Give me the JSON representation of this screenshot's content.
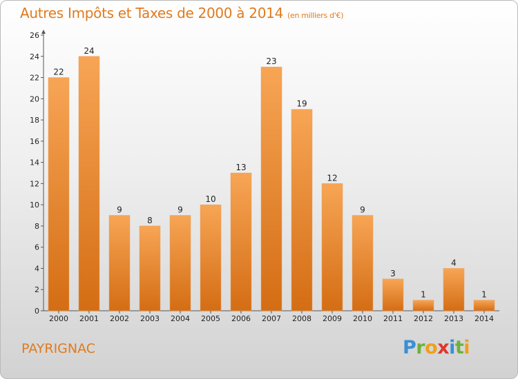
{
  "title": "Autres Impôts et Taxes de 2000 à 2014",
  "title_unit": "(en milliers d'€)",
  "commune": "PAYRIGNAC",
  "logo": {
    "p": "P",
    "r": "r",
    "o": "o",
    "x": "x",
    "i": "i",
    "t": "t",
    "i2": "i"
  },
  "colors": {
    "bar_light": "#f7a555",
    "bar_dark": "#d46d14",
    "title": "#e07a1c"
  },
  "chart_data": {
    "type": "bar",
    "title": "Autres Impôts et Taxes de 2000 à 2014",
    "categories": [
      "2000",
      "2001",
      "2002",
      "2003",
      "2004",
      "2005",
      "2006",
      "2007",
      "2008",
      "2009",
      "2010",
      "2011",
      "2012",
      "2013",
      "2014"
    ],
    "values": [
      22,
      24,
      9,
      8,
      9,
      10,
      13,
      23,
      19,
      12,
      9,
      3,
      1,
      4,
      1
    ],
    "ylim": [
      0,
      26
    ],
    "yticks": [
      0,
      2,
      4,
      6,
      8,
      10,
      12,
      14,
      16,
      18,
      20,
      22,
      24,
      26
    ],
    "grid": false,
    "xlabel": "",
    "ylabel": ""
  }
}
